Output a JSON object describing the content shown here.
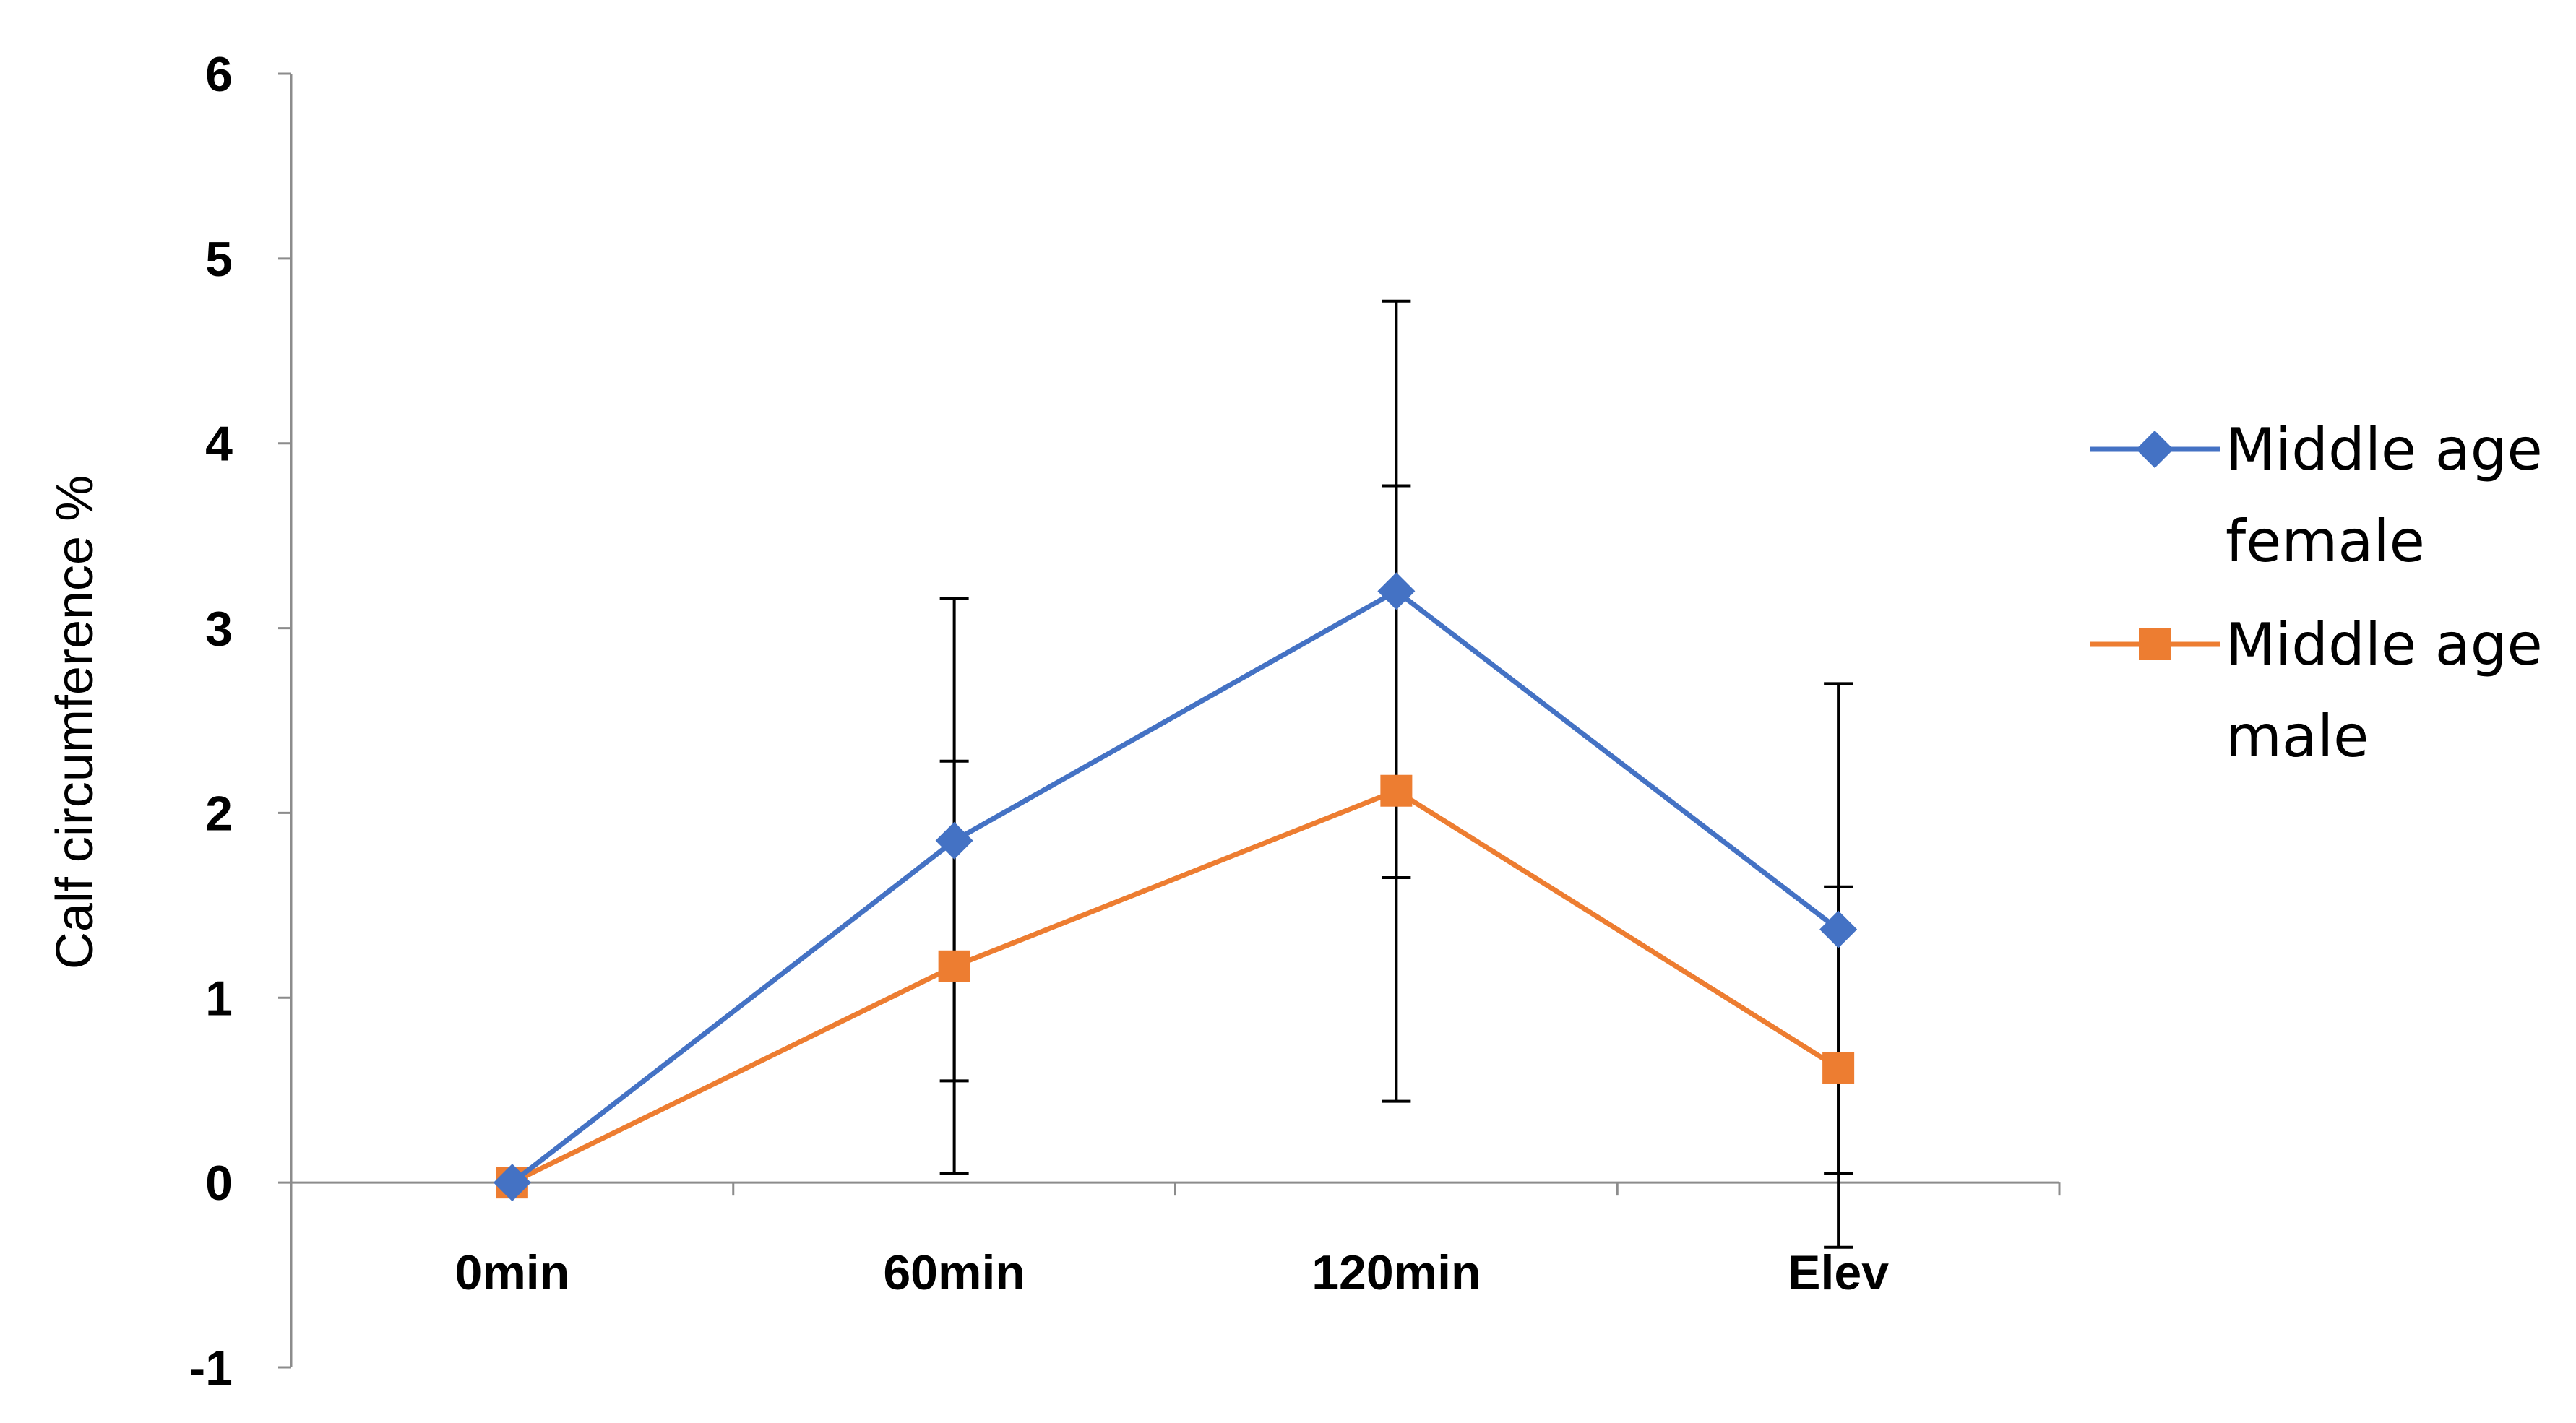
{
  "chart_data": {
    "type": "line",
    "title": "",
    "xlabel": "",
    "ylabel": "Calf circumference %",
    "ylim": [
      -1,
      6
    ],
    "yticks": [
      -1,
      0,
      1,
      2,
      3,
      4,
      5,
      6
    ],
    "categories": [
      "0min",
      "60min",
      "120min",
      "Elev"
    ],
    "grid": false,
    "legend_position": "right",
    "series": [
      {
        "name": "Middle age female",
        "legend_lines": [
          "Middle age",
          "female"
        ],
        "color": "#4472C4",
        "marker": "diamond",
        "values": [
          0,
          1.85,
          3.2,
          1.37
        ],
        "error_upper": [
          0,
          3.16,
          4.77,
          2.7
        ],
        "error_lower": [
          0,
          0.55,
          1.65,
          0.05
        ]
      },
      {
        "name": "Middle age male",
        "legend_lines": [
          "Middle age",
          "male"
        ],
        "color": "#ED7D31",
        "marker": "square",
        "values": [
          0,
          1.17,
          2.12,
          0.62
        ],
        "error_upper": [
          0,
          2.28,
          3.77,
          1.6
        ],
        "error_lower": [
          0,
          0.05,
          0.44,
          -0.35
        ]
      }
    ]
  }
}
